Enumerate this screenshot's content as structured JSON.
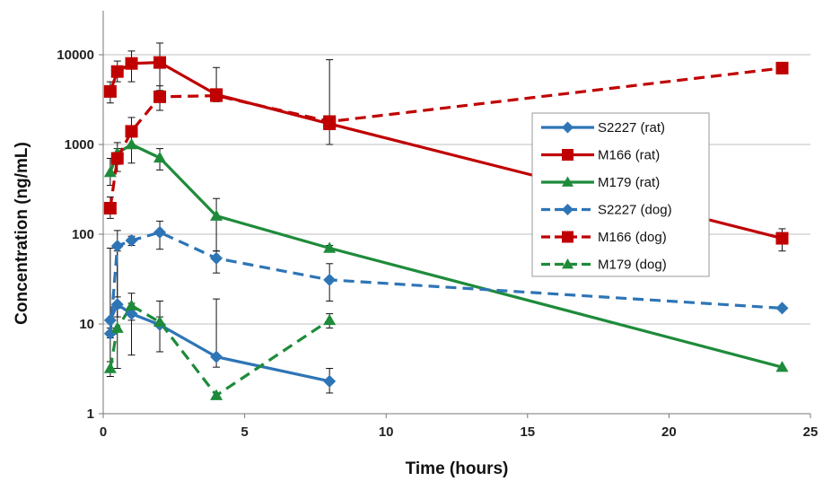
{
  "chart_data": {
    "type": "line",
    "title": "",
    "xlabel": "Time (hours)",
    "ylabel": "Concentration (ng/mL)",
    "xlim": [
      0,
      25
    ],
    "ylim": [
      1,
      10000
    ],
    "yscale": "log",
    "grid": "horizontal",
    "legend": "right",
    "x_ticks": [
      "0",
      "5",
      "10",
      "15",
      "20",
      "25"
    ],
    "y_ticks": [
      "1",
      "10",
      "100",
      "1000",
      "10000"
    ],
    "series": [
      {
        "name": "S2227 (rat)",
        "color": "#2E75B6",
        "dash": "solid",
        "marker": "diamond",
        "x": [
          0.25,
          0.5,
          1,
          2,
          4,
          8
        ],
        "y": [
          11,
          16.5,
          13,
          9.8,
          4.3,
          2.3
        ],
        "err_low": [
          3,
          12,
          4.5,
          4.9,
          3.3,
          1.7
        ],
        "err_high": [
          70,
          65,
          17,
          18,
          19,
          3.2
        ]
      },
      {
        "name": "M166 (rat)",
        "color": "#C00000",
        "dash": "solid",
        "marker": "square",
        "x": [
          0.25,
          0.5,
          1,
          2,
          4,
          8,
          24
        ],
        "y": [
          3900,
          6500,
          8000,
          8200,
          3600,
          1700,
          90
        ],
        "err_low": [
          2900,
          5000,
          5000,
          4000,
          3000,
          1000,
          65
        ],
        "err_high": [
          5000,
          8500,
          11000,
          13500,
          7200,
          8800,
          115
        ]
      },
      {
        "name": "M179 (rat)",
        "color": "#1E8B3A",
        "dash": "solid",
        "marker": "triangle",
        "x": [
          0.25,
          0.5,
          1,
          2,
          4,
          8,
          24
        ],
        "y": [
          490,
          800,
          1000,
          710,
          160,
          70,
          3.3
        ],
        "err_low": [
          350,
          600,
          620,
          520,
          65,
          65,
          3.3
        ],
        "err_high": [
          700,
          1050,
          1300,
          900,
          250,
          75,
          3.3
        ]
      },
      {
        "name": "S2227 (dog)",
        "color": "#2E75B6",
        "dash": "dashed",
        "marker": "diamond",
        "x": [
          0.25,
          0.5,
          1,
          2,
          4,
          8,
          24
        ],
        "y": [
          7.8,
          74,
          85,
          105,
          54,
          31,
          15
        ],
        "err_low": [
          7,
          20,
          75,
          68,
          37,
          18,
          15
        ],
        "err_high": [
          9,
          110,
          95,
          140,
          65,
          47,
          15
        ]
      },
      {
        "name": "M166 (dog)",
        "color": "#C00000",
        "dash": "dashed",
        "marker": "square",
        "x": [
          0.25,
          0.5,
          1,
          2,
          4,
          8,
          24
        ],
        "y": [
          195,
          700,
          1400,
          3400,
          3500,
          1800,
          7100
        ],
        "err_low": [
          150,
          500,
          1000,
          2400,
          3300,
          1600,
          7100
        ],
        "err_high": [
          260,
          900,
          2000,
          4500,
          3700,
          2000,
          7100
        ]
      },
      {
        "name": "M179 (dog)",
        "color": "#1E8B3A",
        "dash": "dashed",
        "marker": "triangle",
        "x": [
          0.25,
          0.5,
          1,
          2,
          4,
          8
        ],
        "y": [
          3.2,
          9,
          16,
          10.5,
          1.6,
          11
        ],
        "err_low": [
          2.6,
          3.2,
          11,
          9.5,
          1.6,
          9
        ],
        "err_high": [
          3.8,
          15,
          22,
          12,
          1.6,
          13
        ]
      }
    ]
  }
}
